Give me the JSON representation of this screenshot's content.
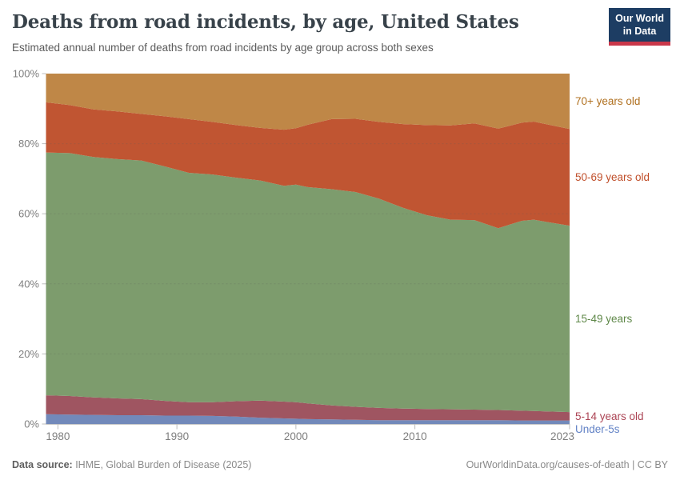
{
  "header": {
    "title": "Deaths from road incidents, by age, United States",
    "subtitle": "Estimated annual number of deaths from road incidents by age group across both sexes",
    "logo": {
      "line1": "Our World",
      "line2": "in Data",
      "bg_color": "#1d3d63",
      "accent_color": "#c9374a"
    }
  },
  "footer": {
    "source_label": "Data source:",
    "source_text": " IHME, Global Burden of Disease (2025)",
    "credit": "OurWorldinData.org/causes-of-death | CC BY"
  },
  "chart_data": {
    "type": "area",
    "stacked_percent": true,
    "title": "Deaths from road incidents, by age, United States",
    "x_label": "",
    "y_label": "",
    "x_range": [
      1979,
      2023
    ],
    "y_range": [
      0,
      100
    ],
    "grid": "dashed horizontal",
    "legend_position": "right-of-plot",
    "x": [
      1979,
      1981,
      1983,
      1985,
      1987,
      1989,
      1991,
      1993,
      1995,
      1997,
      1999,
      2000,
      2001,
      2003,
      2005,
      2007,
      2009,
      2011,
      2013,
      2015,
      2017,
      2019,
      2020,
      2021,
      2023
    ],
    "x_ticks": [
      1980,
      1990,
      2000,
      2010,
      2023
    ],
    "y_ticks": [
      0,
      20,
      40,
      60,
      80,
      100
    ],
    "y_tick_suffix": "%",
    "series": [
      {
        "name": "under-5s",
        "label": "Under-5s",
        "color": "#7289ba",
        "label_color": "#6383c6",
        "values": [
          2.8,
          2.7,
          2.6,
          2.5,
          2.5,
          2.4,
          2.4,
          2.3,
          2.1,
          1.8,
          1.6,
          1.5,
          1.4,
          1.3,
          1.2,
          1.1,
          1.1,
          1.1,
          1.1,
          1.1,
          1.1,
          1.0,
          1.0,
          1.0,
          1.0
        ]
      },
      {
        "name": "5-14-years",
        "label": "5-14 years old",
        "color": "#9f5561",
        "label_color": "#ac4454",
        "values": [
          5.4,
          5.3,
          5.0,
          4.8,
          4.6,
          4.2,
          3.8,
          3.9,
          4.4,
          4.9,
          4.8,
          4.7,
          4.5,
          4.0,
          3.7,
          3.5,
          3.3,
          3.2,
          3.1,
          3.0,
          2.9,
          2.8,
          2.7,
          2.6,
          2.4
        ]
      },
      {
        "name": "15-49-years",
        "label": "15-49 years",
        "color": "#7d9c6d",
        "label_color": "#5f8849",
        "values": [
          69.3,
          69.3,
          68.6,
          68.3,
          68.1,
          66.9,
          65.5,
          65.0,
          63.8,
          62.8,
          61.6,
          62.1,
          61.7,
          61.7,
          61.3,
          59.7,
          57.3,
          55.3,
          54.1,
          54.1,
          51.9,
          54.2,
          54.6,
          54.1,
          53.2
        ]
      },
      {
        "name": "50-69-years",
        "label": "50-69 years old",
        "color": "#c05532",
        "label_color": "#c04f2b",
        "values": [
          14.3,
          13.7,
          13.6,
          13.6,
          13.3,
          14.3,
          15.3,
          15.0,
          15.0,
          15.0,
          16.0,
          16.1,
          17.8,
          20.0,
          20.9,
          21.9,
          23.9,
          25.7,
          26.9,
          27.6,
          28.4,
          28.0,
          28.0,
          27.9,
          27.6
        ]
      },
      {
        "name": "70-plus-years",
        "label": "70+ years old",
        "color": "#bf8747",
        "label_color": "#b0701f",
        "values": [
          8.2,
          9.0,
          10.2,
          10.8,
          11.5,
          12.2,
          13.0,
          13.8,
          14.7,
          15.5,
          16.0,
          15.6,
          14.6,
          13.0,
          12.9,
          13.8,
          14.4,
          14.7,
          14.8,
          14.2,
          15.7,
          14.0,
          13.7,
          14.4,
          15.8
        ]
      }
    ]
  }
}
